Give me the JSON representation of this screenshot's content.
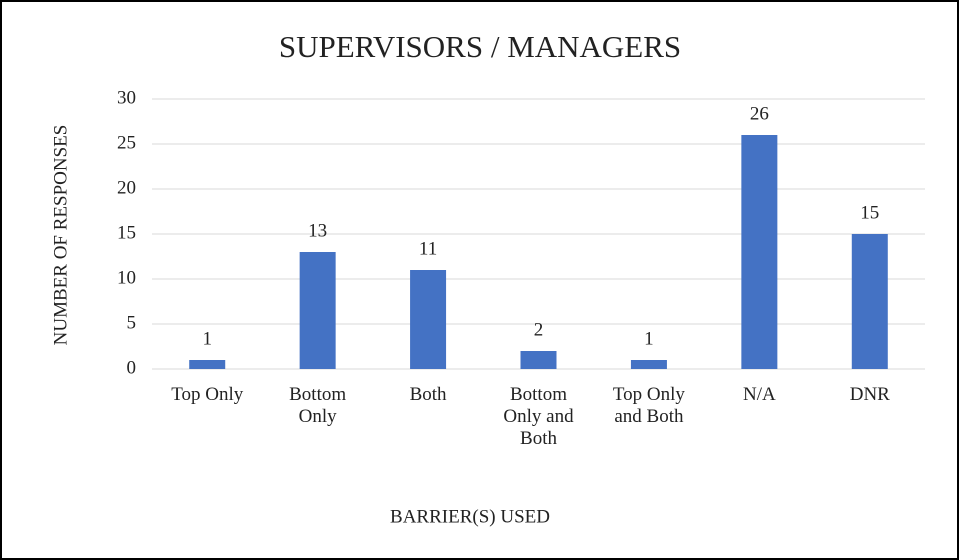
{
  "chart_data": {
    "type": "bar",
    "title": "SUPERVISORS / MANAGERS",
    "x_label": "BARRIER(S) USED",
    "y_label": "NUMBER OF RESPONSES",
    "categories": [
      "Top Only",
      "Bottom Only",
      "Both",
      "Bottom Only and Both",
      "Top Only and Both",
      "N/A",
      "DNR"
    ],
    "values": [
      1,
      13,
      11,
      2,
      1,
      26,
      15
    ],
    "color": "#4472c4",
    "ylim": [
      0,
      30
    ],
    "yticks": [
      0,
      5,
      10,
      15,
      20,
      25,
      30
    ],
    "grid": true
  }
}
